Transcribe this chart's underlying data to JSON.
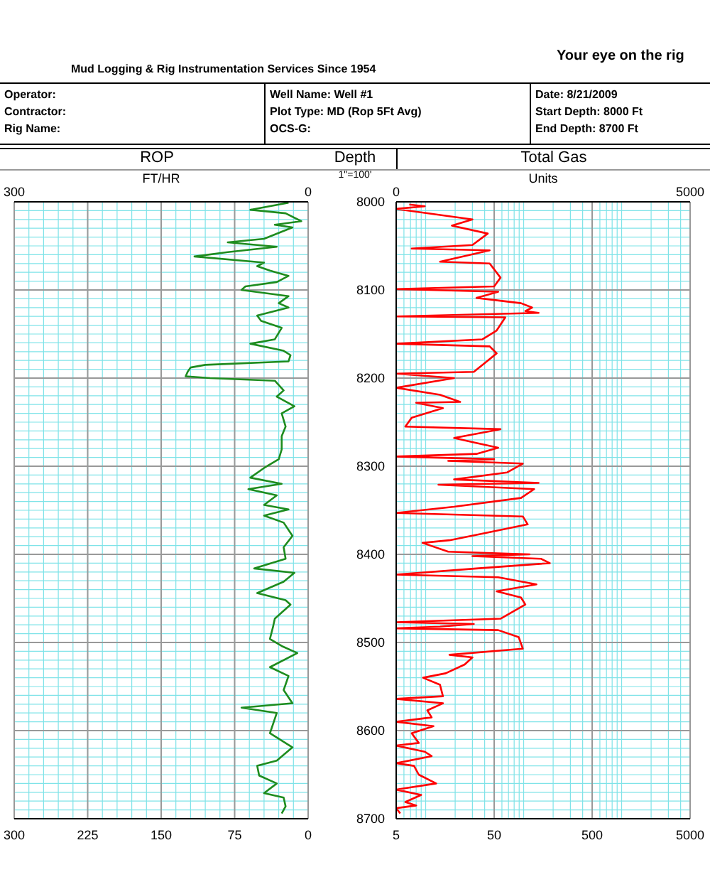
{
  "chart_data": [
    {
      "type": "line",
      "orientation": "horizontal",
      "title": "ROP",
      "x2label": "FT/HR",
      "xlim": [
        300,
        0
      ],
      "xticks": [
        300,
        {
          "value": 285,
          "label": null
        },
        {
          "value": 270,
          "label": null
        },
        {
          "value": 255,
          "label": null
        },
        {
          "value": 240,
          "label": null
        },
        225,
        {
          "value": 210,
          "label": null
        },
        {
          "value": 195,
          "label": null
        },
        {
          "value": 180,
          "label": null
        },
        {
          "value": 165,
          "label": null
        },
        150,
        {
          "value": 135,
          "label": null
        },
        {
          "value": 120,
          "label": null
        },
        {
          "value": 105,
          "label": null
        },
        {
          "value": 90,
          "label": null
        },
        75,
        {
          "value": 60,
          "label": null
        },
        {
          "value": 45,
          "label": null
        },
        {
          "value": 30,
          "label": null
        },
        {
          "value": 15,
          "label": null
        },
        0
      ],
      "x2lim": [
        300,
        0
      ],
      "x2ticks": [
        300,
        0
      ],
      "ylim": [
        8700,
        8000
      ],
      "yticks": [
        8000,
        {
          "value": 8010,
          "label": null
        },
        {
          "value": 8020,
          "label": null
        },
        {
          "value": 8030,
          "label": null
        },
        {
          "value": 8040,
          "label": null
        },
        {
          "value": 8050,
          "label": null
        },
        {
          "value": 8060,
          "label": null
        },
        {
          "value": 8070,
          "label": null
        },
        {
          "value": 8080,
          "label": null
        },
        {
          "value": 8090,
          "label": null
        },
        8100,
        {
          "value": 8110,
          "label": null
        },
        {
          "value": 8120,
          "label": null
        },
        {
          "value": 8130,
          "label": null
        },
        {
          "value": 8140,
          "label": null
        },
        {
          "value": 8150,
          "label": null
        },
        {
          "value": 8160,
          "label": null
        },
        {
          "value": 8170,
          "label": null
        },
        {
          "value": 8180,
          "label": null
        },
        {
          "value": 8190,
          "label": null
        },
        8200,
        {
          "value": 8210,
          "label": null
        },
        {
          "value": 8220,
          "label": null
        },
        {
          "value": 8230,
          "label": null
        },
        {
          "value": 8240,
          "label": null
        },
        {
          "value": 8250,
          "label": null
        },
        {
          "value": 8260,
          "label": null
        },
        {
          "value": 8270,
          "label": null
        },
        {
          "value": 8280,
          "label": null
        },
        {
          "value": 8290,
          "label": null
        },
        8300,
        {
          "value": 8310,
          "label": null
        },
        {
          "value": 8320,
          "label": null
        },
        {
          "value": 8330,
          "label": null
        },
        {
          "value": 8340,
          "label": null
        },
        {
          "value": 8350,
          "label": null
        },
        {
          "value": 8360,
          "label": null
        },
        {
          "value": 8370,
          "label": null
        },
        {
          "value": 8380,
          "label": null
        },
        {
          "value": 8390,
          "label": null
        },
        8400,
        {
          "value": 8410,
          "label": null
        },
        {
          "value": 8420,
          "label": null
        },
        {
          "value": 8430,
          "label": null
        },
        {
          "value": 8440,
          "label": null
        },
        {
          "value": 8450,
          "label": null
        },
        {
          "value": 8460,
          "label": null
        },
        {
          "value": 8470,
          "label": null
        },
        {
          "value": 8480,
          "label": null
        },
        {
          "value": 8490,
          "label": null
        },
        8500,
        {
          "value": 8510,
          "label": null
        },
        {
          "value": 8520,
          "label": null
        },
        {
          "value": 8530,
          "label": null
        },
        {
          "value": 8540,
          "label": null
        },
        {
          "value": 8550,
          "label": null
        },
        {
          "value": 8560,
          "label": null
        },
        {
          "value": 8570,
          "label": null
        },
        {
          "value": 8580,
          "label": null
        },
        {
          "value": 8590,
          "label": null
        },
        8600,
        {
          "value": 8610,
          "label": null
        },
        {
          "value": 8620,
          "label": null
        },
        {
          "value": 8630,
          "label": null
        },
        {
          "value": 8640,
          "label": null
        },
        {
          "value": 8650,
          "label": null
        },
        {
          "value": 8660,
          "label": null
        },
        {
          "value": 8670,
          "label": null
        },
        {
          "value": 8680,
          "label": null
        },
        {
          "value": 8690,
          "label": null
        },
        8700
      ],
      "tick_labels": "x",
      "grid": true,
      "line_style": "solid",
      "annotations": [
        "Mud Logging & Rig Instrumentation Services Since 1954",
        "Your eye on the rig",
        "Operator:",
        "Contractor:",
        "Rig Name:",
        "Well Name: Well #1",
        "Plot Type: MD (Rop 5Ft Avg)",
        "OCS-G:",
        "Date: 8/21/2009",
        "Start Depth: 8000 Ft",
        "End Depth: 8700 Ft"
      ],
      "series": [
        {
          "color": "#1e8c1e",
          "x": [
            8001,
            8009,
            8013,
            8022,
            8026,
            8029,
            8042,
            8046,
            8051,
            8057,
            8062,
            8069,
            8073,
            8078,
            8084,
            8091,
            8096,
            8100,
            8107,
            8115,
            8120,
            8129,
            8135,
            8143,
            8156,
            8161,
            8169,
            8174,
            8181,
            8185,
            8188,
            8193,
            8198,
            8200,
            8203,
            8214,
            8221,
            8232,
            8240,
            8255,
            8266,
            8281,
            8292,
            8302,
            8313,
            8320,
            8326,
            8333,
            8344,
            8349,
            8356,
            8364,
            8379,
            8392,
            8405,
            8416,
            8421,
            8431,
            8444,
            8452,
            8457,
            8473,
            8483,
            8496,
            8504,
            8512,
            8528,
            8538,
            8554,
            8569,
            8574,
            8580,
            8603,
            8619,
            8634,
            8640,
            8651,
            8660,
            8671,
            8676,
            8686,
            8694
          ],
          "values": [
            20,
            59,
            23,
            7,
            34,
            16,
            45,
            82,
            32,
            82,
            116,
            45,
            52,
            39,
            20,
            32,
            64,
            68,
            20,
            30,
            20,
            52,
            48,
            27,
            34,
            59,
            25,
            18,
            20,
            105,
            120,
            123,
            125,
            100,
            34,
            25,
            32,
            14,
            27,
            23,
            27,
            27,
            30,
            45,
            59,
            27,
            61,
            32,
            45,
            20,
            45,
            25,
            16,
            25,
            23,
            55,
            14,
            25,
            52,
            23,
            18,
            34,
            36,
            39,
            27,
            11,
            39,
            20,
            25,
            16,
            68,
            32,
            39,
            16,
            32,
            52,
            50,
            32,
            45,
            25,
            23,
            27
          ]
        }
      ]
    },
    {
      "type": "line",
      "orientation": "horizontal",
      "title": "Total Gas",
      "ylabel": "Depth",
      "x2label": "Units",
      "log": "x",
      "xlim": [
        5,
        5000
      ],
      "xticks": [
        5,
        {
          "value": 6,
          "label": null
        },
        {
          "value": 7,
          "label": null
        },
        {
          "value": 8,
          "label": null
        },
        {
          "value": 9,
          "label": null
        },
        {
          "value": 10,
          "label": null
        },
        {
          "value": 20,
          "label": null
        },
        {
          "value": 30,
          "label": null
        },
        {
          "value": 40,
          "label": null
        },
        50,
        {
          "value": 60,
          "label": null
        },
        {
          "value": 70,
          "label": null
        },
        {
          "value": 80,
          "label": null
        },
        {
          "value": 90,
          "label": null
        },
        {
          "value": 100,
          "label": null
        },
        {
          "value": 200,
          "label": null
        },
        {
          "value": 300,
          "label": null
        },
        {
          "value": 400,
          "label": null
        },
        500,
        {
          "value": 600,
          "label": null
        },
        {
          "value": 700,
          "label": null
        },
        {
          "value": 800,
          "label": null
        },
        {
          "value": 900,
          "label": null
        },
        {
          "value": 1000,
          "label": null
        },
        {
          "value": 2000,
          "label": null
        },
        {
          "value": 3000,
          "label": null
        },
        {
          "value": 4000,
          "label": null
        },
        5000
      ],
      "x2lim": [
        0,
        5000
      ],
      "x2ticks": [
        0,
        5000
      ],
      "ylim": [
        8700,
        8000
      ],
      "yticks": [
        8000,
        {
          "value": 8010,
          "label": null
        },
        {
          "value": 8020,
          "label": null
        },
        {
          "value": 8030,
          "label": null
        },
        {
          "value": 8040,
          "label": null
        },
        {
          "value": 8050,
          "label": null
        },
        {
          "value": 8060,
          "label": null
        },
        {
          "value": 8070,
          "label": null
        },
        {
          "value": 8080,
          "label": null
        },
        {
          "value": 8090,
          "label": null
        },
        8100,
        {
          "value": 8110,
          "label": null
        },
        {
          "value": 8120,
          "label": null
        },
        {
          "value": 8130,
          "label": null
        },
        {
          "value": 8140,
          "label": null
        },
        {
          "value": 8150,
          "label": null
        },
        {
          "value": 8160,
          "label": null
        },
        {
          "value": 8170,
          "label": null
        },
        {
          "value": 8180,
          "label": null
        },
        {
          "value": 8190,
          "label": null
        },
        8200,
        {
          "value": 8210,
          "label": null
        },
        {
          "value": 8220,
          "label": null
        },
        {
          "value": 8230,
          "label": null
        },
        {
          "value": 8240,
          "label": null
        },
        {
          "value": 8250,
          "label": null
        },
        {
          "value": 8260,
          "label": null
        },
        {
          "value": 8270,
          "label": null
        },
        {
          "value": 8280,
          "label": null
        },
        {
          "value": 8290,
          "label": null
        },
        8300,
        {
          "value": 8310,
          "label": null
        },
        {
          "value": 8320,
          "label": null
        },
        {
          "value": 8330,
          "label": null
        },
        {
          "value": 8340,
          "label": null
        },
        {
          "value": 8350,
          "label": null
        },
        {
          "value": 8360,
          "label": null
        },
        {
          "value": 8370,
          "label": null
        },
        {
          "value": 8380,
          "label": null
        },
        {
          "value": 8390,
          "label": null
        },
        8400,
        {
          "value": 8410,
          "label": null
        },
        {
          "value": 8420,
          "label": null
        },
        {
          "value": 8430,
          "label": null
        },
        {
          "value": 8440,
          "label": null
        },
        {
          "value": 8450,
          "label": null
        },
        {
          "value": 8460,
          "label": null
        },
        {
          "value": 8470,
          "label": null
        },
        {
          "value": 8480,
          "label": null
        },
        {
          "value": 8490,
          "label": null
        },
        8500,
        {
          "value": 8510,
          "label": null
        },
        {
          "value": 8520,
          "label": null
        },
        {
          "value": 8530,
          "label": null
        },
        {
          "value": 8540,
          "label": null
        },
        {
          "value": 8550,
          "label": null
        },
        {
          "value": 8560,
          "label": null
        },
        {
          "value": 8570,
          "label": null
        },
        {
          "value": 8580,
          "label": null
        },
        {
          "value": 8590,
          "label": null
        },
        8600,
        {
          "value": 8610,
          "label": null
        },
        {
          "value": 8620,
          "label": null
        },
        {
          "value": 8630,
          "label": null
        },
        {
          "value": 8640,
          "label": null
        },
        {
          "value": 8650,
          "label": null
        },
        {
          "value": 8660,
          "label": null
        },
        {
          "value": 8670,
          "label": null
        },
        {
          "value": 8680,
          "label": null
        },
        {
          "value": 8690,
          "label": null
        },
        8700
      ],
      "grid": true,
      "line_style": "solid",
      "annotations": [
        "1\"=100'"
      ],
      "series": [
        {
          "color": "#ff0000",
          "x": [
            8003,
            8005,
            8008,
            8020,
            8027,
            8036,
            8049,
            8053,
            8055,
            8068,
            8070,
            8086,
            8096,
            8099,
            8102,
            8109,
            8115,
            8120,
            8124,
            8126,
            8130,
            8131,
            8146,
            8156,
            8161,
            8164,
            8172,
            8193,
            8195,
            8200,
            8211,
            8219,
            8227,
            8228,
            8234,
            8245,
            8255,
            8258,
            8268,
            8273,
            8279,
            8286,
            8289,
            8292,
            8294,
            8297,
            8307,
            8315,
            8319,
            8321,
            8326,
            8336,
            8346,
            8353,
            8357,
            8366,
            8377,
            8384,
            8387,
            8397,
            8400,
            8402,
            8405,
            8410,
            8416,
            8423,
            8426,
            8434,
            8442,
            8449,
            8457,
            8473,
            8477,
            8479,
            8482,
            8484,
            8486,
            8494,
            8507,
            8514,
            8517,
            8525,
            8535,
            8540,
            8548,
            8561,
            8564,
            8569,
            8577,
            8585,
            8590,
            8595,
            8603,
            8614,
            8617,
            8624,
            8629,
            8637,
            8640,
            8650,
            8660,
            8667,
            8673,
            8681,
            8685,
            8688,
            8694
          ],
          "values": [
            6.8,
            9.8,
            5,
            30,
            18.5,
            43,
            30,
            7.2,
            45,
            14,
            45,
            58,
            50,
            5,
            55,
            33,
            94,
            122,
            104,
            142,
            5,
            65,
            53,
            38,
            5,
            45,
            53,
            31,
            5,
            19.5,
            5,
            14,
            22.5,
            8,
            15,
            7.2,
            6.2,
            58,
            19.5,
            31,
            55,
            33,
            5,
            50,
            17,
            98,
            68,
            19.5,
            142,
            13.5,
            128,
            94,
            19.5,
            5,
            98,
            110,
            36,
            17.5,
            9.3,
            17,
            115,
            30,
            150,
            185,
            33,
            5,
            55,
            135,
            53,
            94,
            104,
            58,
            5,
            31,
            14,
            5,
            55,
            89,
            98,
            17.5,
            30,
            25,
            16,
            9.4,
            14,
            15,
            5,
            15,
            10.4,
            11.5,
            5,
            12,
            7.2,
            8.5,
            5,
            9.8,
            11.5,
            5,
            7.6,
            8.5,
            12.8,
            5,
            9,
            6.2,
            8,
            5,
            5.5
          ]
        }
      ]
    }
  ]
}
